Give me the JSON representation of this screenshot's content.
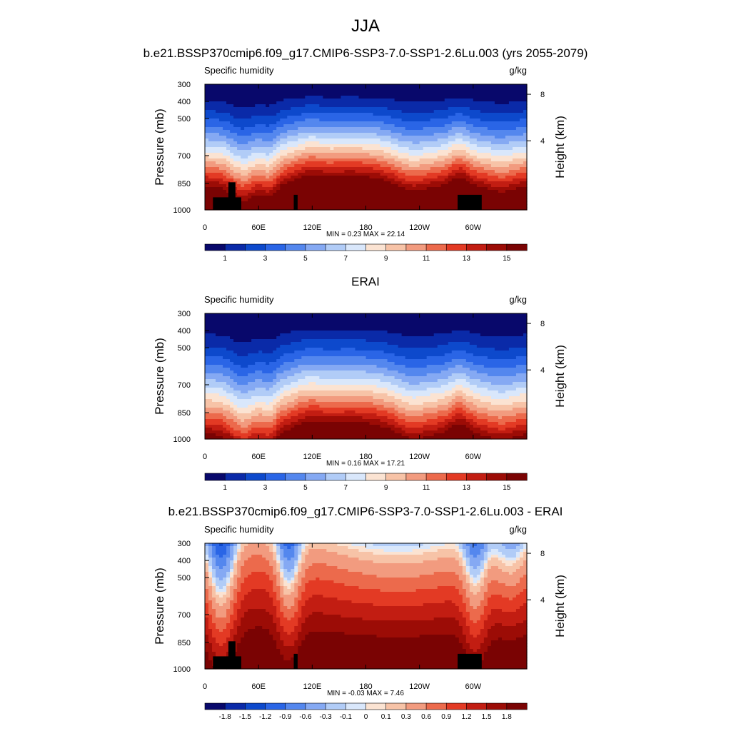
{
  "figure": {
    "title": "JJA"
  },
  "palette_main": [
    "#08086b",
    "#0a2aa8",
    "#0d49cc",
    "#2a65e6",
    "#5487ee",
    "#85a9f3",
    "#b1ccf7",
    "#d9e7fb",
    "#fbe3d2",
    "#f7c3a7",
    "#f29b7f",
    "#ec6a4c",
    "#e33a24",
    "#c21d12",
    "#9c0c06",
    "#7a0303"
  ],
  "palette_diff": [
    "#08086b",
    "#0a2aa8",
    "#0d49cc",
    "#2a65e6",
    "#5487ee",
    "#85a9f3",
    "#b1ccf7",
    "#d9e7fb",
    "#fbe3d2",
    "#f7c3a7",
    "#f29b7f",
    "#ec6a4c",
    "#e33a24",
    "#c21d12",
    "#9c0c06",
    "#7a0303"
  ],
  "chart_data": [
    {
      "type": "heatmap",
      "title": "b.e21.BSSP370cmip6.f09_g17.CMIP6-SSP3-7.0-SSP1-2.6Lu.003 (yrs 2055-2079)",
      "left_label": "Specific humidity",
      "units_label": "g/kg",
      "ylabel": "Pressure (mb)",
      "ylabel_right": "Height (km)",
      "xlabel": "",
      "yticks": [
        "300",
        "400",
        "500",
        "700",
        "850",
        "1000"
      ],
      "yticks_right": [
        "8",
        "4"
      ],
      "xticks": [
        "0",
        "60E",
        "120E",
        "180",
        "120W",
        "60W"
      ],
      "stats": "MIN =   0.23  MAX =  22.14",
      "colorbar_labels": [
        "1",
        "3",
        "5",
        "7",
        "9",
        "11",
        "13",
        "15"
      ],
      "value_range": [
        0.23,
        22.14
      ]
    },
    {
      "type": "heatmap",
      "title": "ERAI",
      "left_label": "Specific humidity",
      "units_label": "g/kg",
      "ylabel": "Pressure (mb)",
      "ylabel_right": "Height (km)",
      "xlabel": "",
      "yticks": [
        "300",
        "400",
        "500",
        "700",
        "850",
        "1000"
      ],
      "yticks_right": [
        "8",
        "4"
      ],
      "xticks": [
        "0",
        "60E",
        "120E",
        "180",
        "120W",
        "60W"
      ],
      "stats": "MIN =   0.16  MAX =  17.21",
      "colorbar_labels": [
        "1",
        "3",
        "5",
        "7",
        "9",
        "11",
        "13",
        "15"
      ],
      "value_range": [
        0.16,
        17.21
      ]
    },
    {
      "type": "heatmap",
      "title": "b.e21.BSSP370cmip6.f09_g17.CMIP6-SSP3-7.0-SSP1-2.6Lu.003 - ERAI",
      "left_label": "Specific humidity",
      "units_label": "g/kg",
      "ylabel": "Pressure (mb)",
      "ylabel_right": "Height (km)",
      "xlabel": "",
      "yticks": [
        "300",
        "400",
        "500",
        "700",
        "850",
        "1000"
      ],
      "yticks_right": [
        "8",
        "4"
      ],
      "xticks": [
        "0",
        "60E",
        "120E",
        "180",
        "120W",
        "60W"
      ],
      "stats": "MIN =  -0.03  MAX =   7.46",
      "colorbar_labels": [
        "-1.8",
        "-1.5",
        "-1.2",
        "-0.9",
        "-0.6",
        "-0.3",
        "-0.1",
        "0",
        "0.1",
        "0.3",
        "0.6",
        "0.9",
        "1.2",
        "1.5",
        "1.8"
      ],
      "value_range": [
        -0.03,
        7.46
      ]
    }
  ]
}
